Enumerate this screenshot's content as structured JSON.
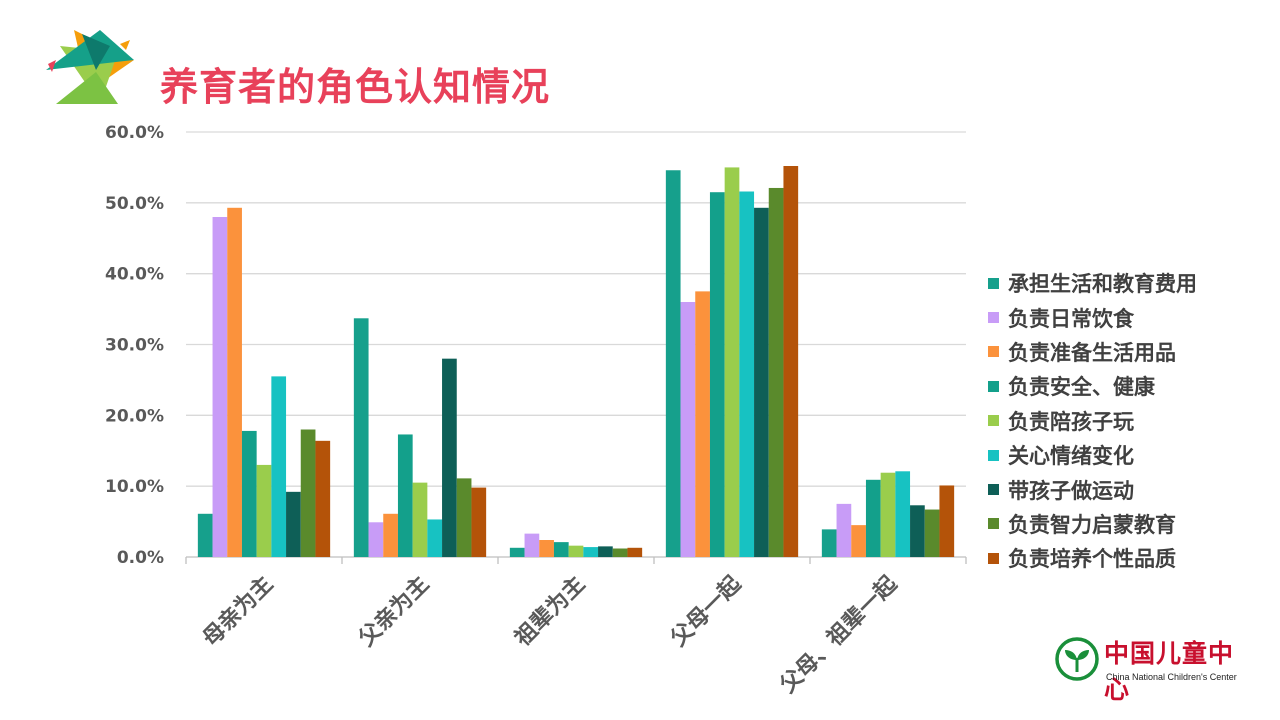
{
  "title": "养育者的角色认知情况",
  "colors": {
    "title": "#e8415a",
    "grid": "#d9d9d9",
    "axis_text": "#595959",
    "logo_red": "#c8102e",
    "logo_green": "#1a8f3a"
  },
  "logo": {
    "cn": "中国儿童中心",
    "en": "China National Children's Center"
  },
  "chart_data": {
    "type": "bar",
    "categories": [
      "母亲为主",
      "父亲为主",
      "祖辈为主",
      "父母一起",
      "父母、祖辈一起"
    ],
    "y_axis": {
      "min": 0,
      "max": 0.6,
      "ticks": [
        0,
        0.1,
        0.2,
        0.3,
        0.4,
        0.5,
        0.6
      ],
      "tick_labels": [
        "0.0%",
        "10.0%",
        "20.0%",
        "30.0%",
        "40.0%",
        "50.0%",
        "60.0%"
      ],
      "format": "percent"
    },
    "grid": true,
    "legend_position": "right",
    "series": [
      {
        "name": "承担生活和教育费用",
        "color": "#16a08c",
        "values": [
          0.061,
          0.337,
          0.013,
          0.546,
          0.039
        ]
      },
      {
        "name": "负责日常饮食",
        "color": "#c89cf7",
        "values": [
          0.48,
          0.049,
          0.033,
          0.36,
          0.075
        ]
      },
      {
        "name": "负责准备生活用品",
        "color": "#fb923c",
        "values": [
          0.493,
          0.061,
          0.024,
          0.375,
          0.045
        ]
      },
      {
        "name": "负责安全、健康",
        "color": "#13a08b",
        "values": [
          0.178,
          0.173,
          0.021,
          0.515,
          0.109
        ]
      },
      {
        "name": "负责陪孩子玩",
        "color": "#9acd4c",
        "values": [
          0.13,
          0.105,
          0.016,
          0.55,
          0.119
        ]
      },
      {
        "name": "关心情绪变化",
        "color": "#17c2c2",
        "values": [
          0.255,
          0.053,
          0.014,
          0.516,
          0.121
        ]
      },
      {
        "name": "带孩子做运动",
        "color": "#0e5f57",
        "values": [
          0.092,
          0.28,
          0.015,
          0.493,
          0.073
        ]
      },
      {
        "name": "负责智力启蒙教育",
        "color": "#5a8a2c",
        "values": [
          0.18,
          0.111,
          0.012,
          0.521,
          0.067
        ]
      },
      {
        "name": "负责培养个性品质",
        "color": "#b45309",
        "values": [
          0.164,
          0.098,
          0.013,
          0.552,
          0.101
        ]
      }
    ]
  }
}
